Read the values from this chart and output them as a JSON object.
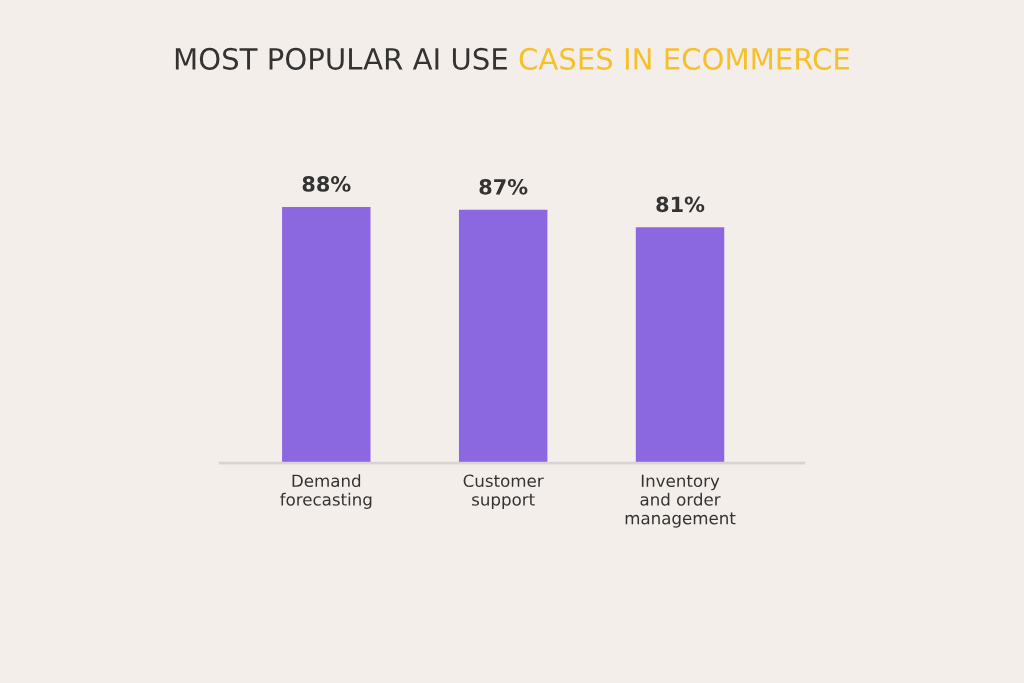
{
  "chart_data": {
    "type": "bar",
    "title": "MOST POPULAR AI USE",
    "subtitle": "CASES IN ECOMMERCE",
    "categories": [
      "Demand\nforecasting",
      "Customer\nsupport",
      "Inventory\nand order\nmanagement"
    ],
    "values": [
      88,
      87,
      81
    ],
    "color": "#8b67e0",
    "data_labels": true,
    "value_labels": [
      "88%",
      "87%",
      "81%"
    ],
    "grid": false,
    "legend": false
  }
}
